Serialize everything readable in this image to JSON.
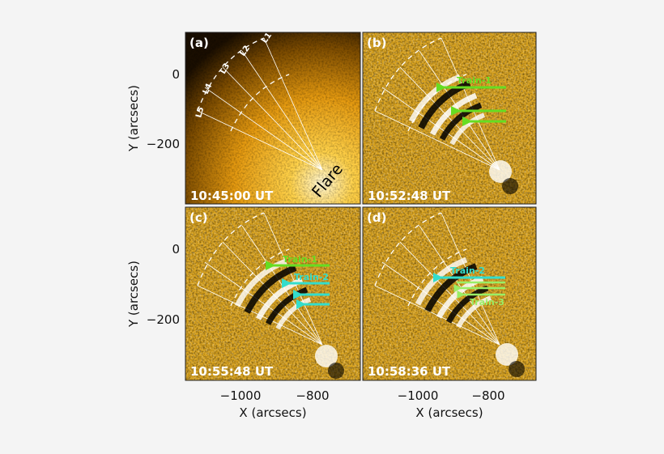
{
  "figure": {
    "y_axis_label": "Y (arcsecs)",
    "x_axis_label": "X (arcsecs)",
    "y_ticks": [
      "0",
      "−200"
    ],
    "x_ticks": [
      "−1000",
      "−800"
    ],
    "colors": {
      "background": "#f4f4f4",
      "aia_gold": "#d9a21c",
      "train1": "#66dd22",
      "train2": "#33ddcc",
      "train3": "#99ee66"
    },
    "panels": [
      {
        "label": "(a)",
        "time": "10:45:00 UT",
        "type": "intensity",
        "slit_labels": [
          "L1",
          "L2",
          "L3",
          "L4",
          "L5"
        ],
        "annotation": "Flare"
      },
      {
        "label": "(b)",
        "time": "10:52:48 UT",
        "type": "difference",
        "trains": [
          "Train-1"
        ]
      },
      {
        "label": "(c)",
        "time": "10:55:48 UT",
        "type": "difference",
        "trains": [
          "Train-1",
          "Train-2"
        ]
      },
      {
        "label": "(d)",
        "time": "10:58:36 UT",
        "type": "difference",
        "trains": [
          "Train-2",
          "Train-3"
        ]
      }
    ]
  }
}
